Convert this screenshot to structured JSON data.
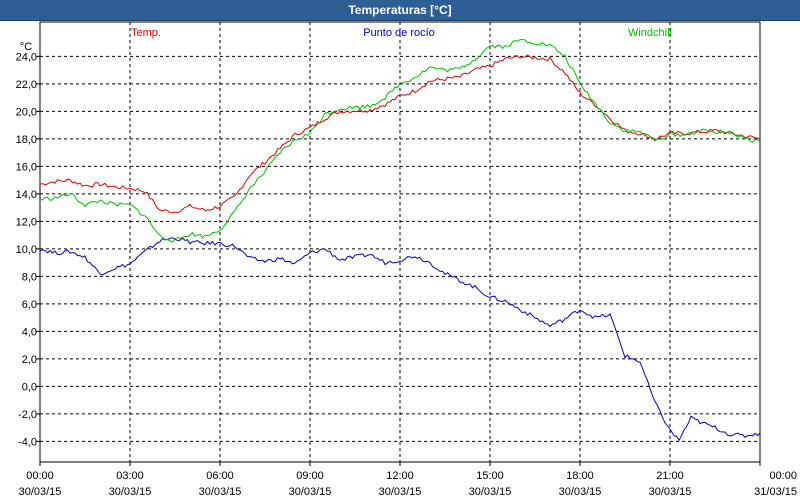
{
  "window": {
    "title": "Temperaturas [°C]"
  },
  "chart_data": {
    "type": "line",
    "title": "Temperaturas [°C]",
    "ylabel": "°C",
    "ylim": [
      -5.5,
      26.5
    ],
    "grid": true,
    "legend_placement": "top",
    "y_ticks": [
      "24,0",
      "22,0",
      "20,0",
      "18,0",
      "16,0",
      "14,0",
      "12,0",
      "10,0",
      "8,0",
      "6,0",
      "4,0",
      "2,0",
      "0,0",
      "-2,0",
      "-4,0"
    ],
    "y_tick_values": [
      24,
      22,
      20,
      18,
      16,
      14,
      12,
      10,
      8,
      6,
      4,
      2,
      0,
      -2,
      -4
    ],
    "x_ticks": [
      {
        "time": "00:00",
        "date": "30/03/15",
        "hour": 0
      },
      {
        "time": "03:00",
        "date": "30/03/15",
        "hour": 3
      },
      {
        "time": "06:00",
        "date": "30/03/15",
        "hour": 6
      },
      {
        "time": "09:00",
        "date": "30/03/15",
        "hour": 9
      },
      {
        "time": "12:00",
        "date": "30/03/15",
        "hour": 12
      },
      {
        "time": "15:00",
        "date": "30/03/15",
        "hour": 15
      },
      {
        "time": "18:00",
        "date": "30/03/15",
        "hour": 18
      },
      {
        "time": "21:00",
        "date": "30/03/15",
        "hour": 21
      },
      {
        "time": "00:00",
        "date": "31/03/15",
        "hour": 24
      }
    ],
    "series": [
      {
        "name": "Temp.",
        "color": "#e00000",
        "points": [
          [
            0,
            14.7
          ],
          [
            0.5,
            14.9
          ],
          [
            1.0,
            15.0
          ],
          [
            1.5,
            14.6
          ],
          [
            2.0,
            14.7
          ],
          [
            2.5,
            14.5
          ],
          [
            3.0,
            14.4
          ],
          [
            3.5,
            14.2
          ],
          [
            4.0,
            12.8
          ],
          [
            4.5,
            12.7
          ],
          [
            5.0,
            13.1
          ],
          [
            5.5,
            12.8
          ],
          [
            6.0,
            13.1
          ],
          [
            6.5,
            13.8
          ],
          [
            7.0,
            15.4
          ],
          [
            7.5,
            16.3
          ],
          [
            8.0,
            17.3
          ],
          [
            8.5,
            18.3
          ],
          [
            9.0,
            18.8
          ],
          [
            9.5,
            19.5
          ],
          [
            10.0,
            20.0
          ],
          [
            11.0,
            20.1
          ],
          [
            11.5,
            20.5
          ],
          [
            12.0,
            21.1
          ],
          [
            12.5,
            21.5
          ],
          [
            13.0,
            22.2
          ],
          [
            14.0,
            22.5
          ],
          [
            14.5,
            23.0
          ],
          [
            15.0,
            23.3
          ],
          [
            15.5,
            23.8
          ],
          [
            16.0,
            24.0
          ],
          [
            17.0,
            23.8
          ],
          [
            17.5,
            22.8
          ],
          [
            18.0,
            21.3
          ],
          [
            18.5,
            20.5
          ],
          [
            19.0,
            19.5
          ],
          [
            19.5,
            18.6
          ],
          [
            20.0,
            18.4
          ],
          [
            20.5,
            18.0
          ],
          [
            21.0,
            18.4
          ],
          [
            21.5,
            18.4
          ],
          [
            22.0,
            18.5
          ],
          [
            22.5,
            18.6
          ],
          [
            23.0,
            18.4
          ],
          [
            23.5,
            18.2
          ],
          [
            24.0,
            18.0
          ]
        ]
      },
      {
        "name": "Punto de rocío",
        "color": "#0000c0",
        "points": [
          [
            0,
            10.0
          ],
          [
            0.5,
            9.7
          ],
          [
            1.0,
            9.8
          ],
          [
            1.5,
            9.4
          ],
          [
            2.0,
            8.2
          ],
          [
            2.5,
            8.6
          ],
          [
            3.0,
            8.9
          ],
          [
            3.5,
            9.8
          ],
          [
            4.0,
            10.6
          ],
          [
            4.5,
            10.8
          ],
          [
            5.0,
            10.5
          ],
          [
            5.5,
            10.4
          ],
          [
            6.0,
            10.4
          ],
          [
            6.5,
            10.2
          ],
          [
            7.0,
            9.3
          ],
          [
            7.5,
            9.1
          ],
          [
            8.0,
            9.3
          ],
          [
            8.5,
            8.9
          ],
          [
            9.0,
            9.7
          ],
          [
            9.5,
            10.0
          ],
          [
            10.0,
            9.2
          ],
          [
            11.0,
            9.6
          ],
          [
            11.5,
            9.0
          ],
          [
            12.0,
            9.2
          ],
          [
            12.5,
            9.5
          ],
          [
            13.0,
            9.0
          ],
          [
            13.5,
            8.2
          ],
          [
            14.0,
            7.7
          ],
          [
            14.5,
            7.2
          ],
          [
            15.0,
            6.5
          ],
          [
            15.5,
            6.2
          ],
          [
            16.0,
            5.6
          ],
          [
            16.5,
            5.0
          ],
          [
            17.0,
            4.4
          ],
          [
            17.5,
            4.9
          ],
          [
            18.0,
            5.6
          ],
          [
            18.5,
            5.0
          ],
          [
            19.0,
            5.2
          ],
          [
            19.5,
            2.2
          ],
          [
            20.0,
            1.8
          ],
          [
            20.5,
            -1.2
          ],
          [
            21.0,
            -3.2
          ],
          [
            21.3,
            -3.9
          ],
          [
            21.7,
            -2.3
          ],
          [
            22.0,
            -2.6
          ],
          [
            22.5,
            -3.0
          ],
          [
            23.0,
            -3.5
          ],
          [
            23.5,
            -3.6
          ],
          [
            24.0,
            -3.4
          ]
        ]
      },
      {
        "name": "Windchill",
        "color": "#00c000",
        "points": [
          [
            0,
            13.6
          ],
          [
            0.5,
            13.7
          ],
          [
            1.0,
            14.0
          ],
          [
            1.5,
            13.2
          ],
          [
            2.0,
            13.5
          ],
          [
            2.5,
            13.2
          ],
          [
            3.0,
            13.2
          ],
          [
            3.5,
            12.4
          ],
          [
            4.0,
            10.9
          ],
          [
            4.5,
            10.6
          ],
          [
            5.0,
            11.1
          ],
          [
            5.5,
            10.9
          ],
          [
            6.0,
            11.4
          ],
          [
            6.5,
            12.7
          ],
          [
            7.0,
            14.4
          ],
          [
            7.5,
            15.6
          ],
          [
            8.0,
            17.0
          ],
          [
            8.5,
            17.9
          ],
          [
            9.0,
            18.4
          ],
          [
            9.5,
            19.8
          ],
          [
            10.0,
            20.2
          ],
          [
            11.0,
            20.4
          ],
          [
            11.5,
            21.0
          ],
          [
            12.0,
            22.0
          ],
          [
            12.5,
            22.5
          ],
          [
            13.0,
            23.2
          ],
          [
            13.5,
            23.0
          ],
          [
            14.0,
            23.1
          ],
          [
            14.5,
            23.8
          ],
          [
            15.0,
            24.8
          ],
          [
            15.5,
            24.7
          ],
          [
            16.0,
            25.2
          ],
          [
            17.0,
            24.8
          ],
          [
            17.5,
            24.0
          ],
          [
            18.0,
            22.0
          ],
          [
            18.5,
            20.6
          ],
          [
            19.0,
            19.2
          ],
          [
            19.5,
            18.6
          ],
          [
            20.0,
            18.5
          ],
          [
            20.5,
            17.9
          ],
          [
            21.0,
            18.3
          ],
          [
            21.5,
            18.3
          ],
          [
            22.0,
            18.6
          ],
          [
            22.5,
            18.5
          ],
          [
            23.0,
            18.5
          ],
          [
            23.5,
            18.0
          ],
          [
            24.0,
            17.8
          ]
        ]
      }
    ]
  }
}
